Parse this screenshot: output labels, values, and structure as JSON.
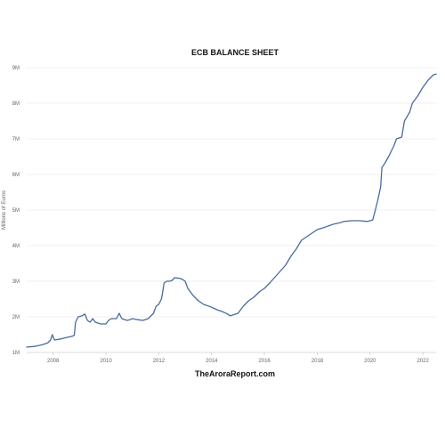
{
  "chart_data": {
    "type": "line",
    "title": "ECB BALANCE SHEET",
    "ylabel": "Millions of Euros",
    "xlabel": "",
    "credit": "TheAroraReport.com",
    "xlim": [
      2007.0,
      2022.5
    ],
    "ylim": [
      1,
      9
    ],
    "x_ticks": [
      2008,
      2010,
      2012,
      2014,
      2016,
      2018,
      2020,
      2022
    ],
    "x_tick_labels": [
      "2008",
      "2010",
      "2012",
      "2014",
      "2016",
      "2018",
      "2020",
      "2022"
    ],
    "y_ticks": [
      1,
      2,
      3,
      4,
      5,
      6,
      7,
      8,
      9
    ],
    "y_tick_labels": [
      "1M",
      "2M",
      "3M",
      "4M",
      "5M",
      "6M",
      "7M",
      "8M",
      "9M"
    ],
    "grid": "horizontal",
    "line_color": "#4a6a9e",
    "series": [
      {
        "points": [
          [
            2007.0,
            1.15
          ],
          [
            2007.3,
            1.17
          ],
          [
            2007.6,
            1.22
          ],
          [
            2007.8,
            1.27
          ],
          [
            2007.9,
            1.35
          ],
          [
            2007.97,
            1.5
          ],
          [
            2008.05,
            1.35
          ],
          [
            2008.3,
            1.38
          ],
          [
            2008.5,
            1.42
          ],
          [
            2008.7,
            1.45
          ],
          [
            2008.8,
            1.48
          ],
          [
            2008.85,
            1.85
          ],
          [
            2008.95,
            2.0
          ],
          [
            2009.1,
            2.03
          ],
          [
            2009.2,
            2.08
          ],
          [
            2009.3,
            1.9
          ],
          [
            2009.4,
            1.85
          ],
          [
            2009.5,
            1.95
          ],
          [
            2009.6,
            1.85
          ],
          [
            2009.8,
            1.8
          ],
          [
            2010.0,
            1.8
          ],
          [
            2010.1,
            1.9
          ],
          [
            2010.2,
            1.95
          ],
          [
            2010.4,
            1.95
          ],
          [
            2010.5,
            2.1
          ],
          [
            2010.6,
            1.95
          ],
          [
            2010.8,
            1.9
          ],
          [
            2010.9,
            1.92
          ],
          [
            2011.0,
            1.95
          ],
          [
            2011.2,
            1.92
          ],
          [
            2011.4,
            1.9
          ],
          [
            2011.6,
            1.95
          ],
          [
            2011.8,
            2.1
          ],
          [
            2011.9,
            2.3
          ],
          [
            2012.0,
            2.35
          ],
          [
            2012.1,
            2.5
          ],
          [
            2012.15,
            2.7
          ],
          [
            2012.2,
            2.95
          ],
          [
            2012.3,
            3.0
          ],
          [
            2012.4,
            3.0
          ],
          [
            2012.5,
            3.02
          ],
          [
            2012.6,
            3.1
          ],
          [
            2012.8,
            3.08
          ],
          [
            2012.9,
            3.05
          ],
          [
            2013.0,
            3.0
          ],
          [
            2013.1,
            2.8
          ],
          [
            2013.3,
            2.6
          ],
          [
            2013.5,
            2.45
          ],
          [
            2013.7,
            2.35
          ],
          [
            2014.0,
            2.27
          ],
          [
            2014.2,
            2.2
          ],
          [
            2014.4,
            2.15
          ],
          [
            2014.6,
            2.08
          ],
          [
            2014.7,
            2.03
          ],
          [
            2014.8,
            2.05
          ],
          [
            2015.0,
            2.1
          ],
          [
            2015.2,
            2.3
          ],
          [
            2015.4,
            2.45
          ],
          [
            2015.6,
            2.55
          ],
          [
            2015.8,
            2.7
          ],
          [
            2016.0,
            2.8
          ],
          [
            2016.2,
            2.95
          ],
          [
            2016.5,
            3.2
          ],
          [
            2016.8,
            3.45
          ],
          [
            2017.0,
            3.7
          ],
          [
            2017.2,
            3.9
          ],
          [
            2017.4,
            4.15
          ],
          [
            2017.6,
            4.25
          ],
          [
            2017.8,
            4.35
          ],
          [
            2018.0,
            4.45
          ],
          [
            2018.3,
            4.52
          ],
          [
            2018.6,
            4.6
          ],
          [
            2018.9,
            4.65
          ],
          [
            2019.0,
            4.68
          ],
          [
            2019.3,
            4.7
          ],
          [
            2019.6,
            4.7
          ],
          [
            2019.9,
            4.68
          ],
          [
            2020.0,
            4.7
          ],
          [
            2020.1,
            4.72
          ],
          [
            2020.2,
            5.0
          ],
          [
            2020.3,
            5.3
          ],
          [
            2020.4,
            5.65
          ],
          [
            2020.45,
            6.2
          ],
          [
            2020.55,
            6.3
          ],
          [
            2020.7,
            6.5
          ],
          [
            2020.9,
            6.8
          ],
          [
            2021.0,
            7.0
          ],
          [
            2021.2,
            7.05
          ],
          [
            2021.3,
            7.5
          ],
          [
            2021.5,
            7.75
          ],
          [
            2021.6,
            8.0
          ],
          [
            2021.8,
            8.2
          ],
          [
            2022.0,
            8.45
          ],
          [
            2022.2,
            8.65
          ],
          [
            2022.4,
            8.8
          ],
          [
            2022.5,
            8.82
          ]
        ]
      }
    ]
  }
}
